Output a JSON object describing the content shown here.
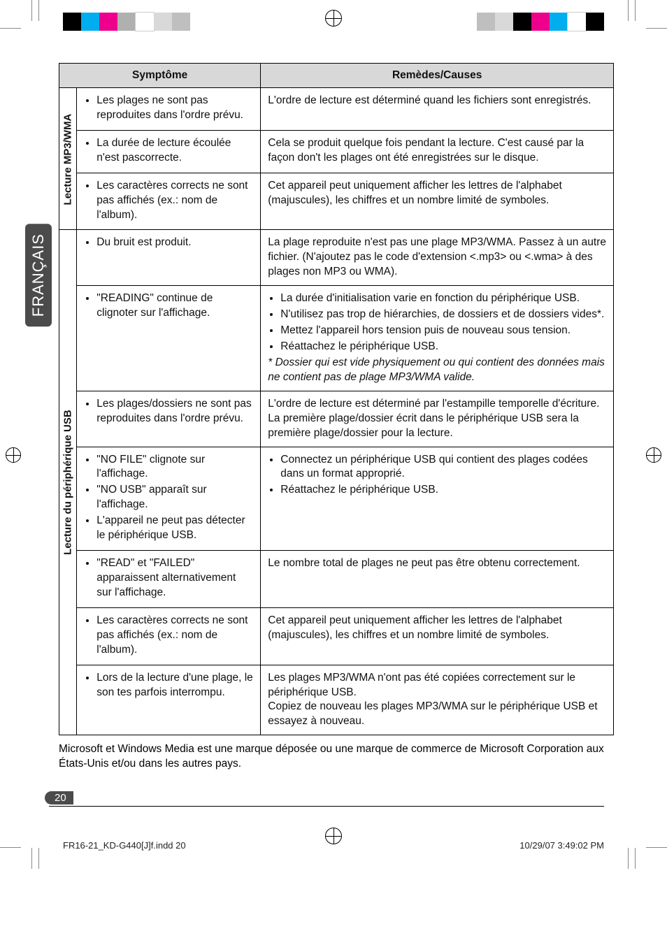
{
  "language_tab": "FRANÇAIS",
  "page_number": "20",
  "reg_colors_left": [
    "#000000",
    "#00adee",
    "#ec008c",
    "#b0b0b0",
    "#ffffff",
    "#d9d9d9",
    "#bfbfbf"
  ],
  "reg_colors_right": [
    "#bfbfbf",
    "#d9d9d9",
    "#000000",
    "#ec008c",
    "#00adee",
    "#ffffff",
    "#000000"
  ],
  "table": {
    "headers": {
      "symptom": "Symptôme",
      "remedy": "Remèdes/Causes"
    },
    "sections": [
      {
        "label": "Lecture MP3/WMA",
        "rows": [
          {
            "symptoms": [
              "Les plages ne sont pas reproduites dans l'ordre prévu."
            ],
            "remedy_text": "L'ordre de lecture est déterminé quand les fichiers sont enregistrés."
          },
          {
            "symptoms": [
              "La durée de lecture écoulée n'est pascorrecte."
            ],
            "remedy_text": "Cela se produit quelque fois pendant la lecture. C'est causé par la façon don't les plages ont été enregistrées sur le disque."
          },
          {
            "symptoms": [
              "Les caractères corrects ne sont pas affichés (ex.: nom de l'album)."
            ],
            "remedy_text": "Cet appareil peut uniquement afficher les lettres de l'alphabet (majuscules), les chiffres et un nombre limité de symboles."
          }
        ]
      },
      {
        "label": "Lecture du périphérique USB",
        "rows": [
          {
            "symptoms": [
              "Du bruit est produit."
            ],
            "remedy_text": "La plage reproduite n'est pas une plage MP3/WMA. Passez à un autre fichier. (N'ajoutez pas le code d'extension <.mp3> ou <.wma> à des plages non MP3 ou WMA)."
          },
          {
            "symptoms": [
              "\"READING\" continue de clignoter sur l'affichage."
            ],
            "remedy_list": [
              "La durée d'initialisation varie en fonction du périphérique USB.",
              "N'utilisez pas trop de hiérarchies, de dossiers et de dossiers vides*.",
              "Mettez l'appareil hors tension puis de nouveau sous tension.",
              "Réattachez le périphérique USB."
            ],
            "remedy_note": "* Dossier qui est vide physiquement ou qui contient des données mais ne contient pas de plage MP3/WMA valide."
          },
          {
            "symptoms": [
              "Les plages/dossiers ne sont pas reproduites dans l'ordre prévu."
            ],
            "remedy_text": "L'ordre de lecture est déterminé par l'estampille temporelle d'écriture. La première plage/dossier écrit dans le périphérique USB sera la première plage/dossier pour la lecture."
          },
          {
            "symptoms": [
              "\"NO FILE\" clignote sur l'affichage.",
              "\"NO USB\" apparaît sur l'affichage.",
              "L'appareil ne peut pas détecter le périphérique USB."
            ],
            "remedy_list": [
              "Connectez un périphérique USB qui contient des plages codées dans un format approprié.",
              "Réattachez le périphérique USB."
            ]
          },
          {
            "symptoms": [
              "\"READ\" et \"FAILED\" apparaissent alternativement sur l'affichage."
            ],
            "remedy_text": "Le nombre total de plages ne peut pas être obtenu correctement."
          },
          {
            "symptoms": [
              "Les caractères corrects ne sont pas affichés (ex.: nom de l'album)."
            ],
            "remedy_text": "Cet appareil peut uniquement afficher les lettres de l'alphabet (majuscules), les chiffres et un nombre limité de symboles."
          },
          {
            "symptoms": [
              "Lors de la lecture d'une plage, le son tes parfois interrompu."
            ],
            "remedy_text": "Les plages MP3/WMA n'ont pas été copiées correctement sur le périphérique USB.\nCopiez de nouveau les plages MP3/WMA sur le périphérique USB et essayez à nouveau."
          }
        ]
      }
    ]
  },
  "footnote": "Microsoft et Windows Media est une marque déposée ou une marque de commerce de Microsoft Corporation aux États-Unis et/ou dans les autres pays.",
  "footer": {
    "left": "FR16-21_KD-G440[J]f.indd   20",
    "right": "10/29/07   3:49:02 PM"
  }
}
